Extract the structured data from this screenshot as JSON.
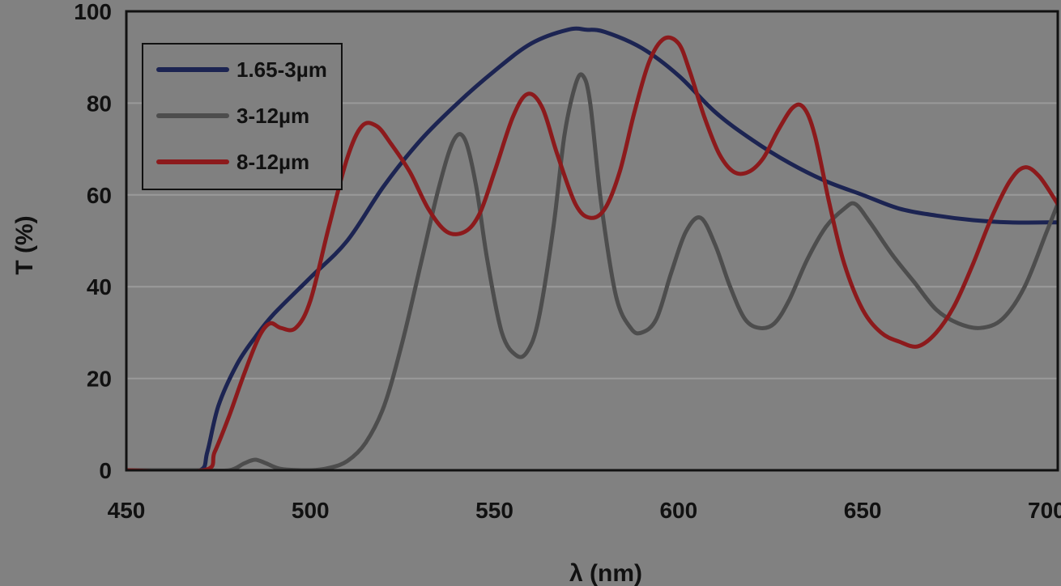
{
  "chart_data": {
    "type": "line",
    "title": "",
    "xlabel": "λ (nm)",
    "ylabel": "T (%)",
    "xlim": [
      450,
      703
    ],
    "ylim": [
      0,
      100
    ],
    "xticks": [
      450,
      500,
      550,
      600,
      650,
      700
    ],
    "yticks": [
      0,
      20,
      40,
      60,
      80,
      100
    ],
    "grid": "horizontal",
    "legend_position": "top-left",
    "colors": {
      "background": "#818181",
      "axes": "#111111",
      "grid": "#9a9a9a"
    },
    "series": [
      {
        "name": "1.65-3µm",
        "color": "#1c2452",
        "x": [
          450,
          460,
          470,
          472,
          475,
          480,
          485,
          490,
          500,
          510,
          520,
          530,
          540,
          550,
          560,
          570,
          575,
          580,
          590,
          600,
          610,
          620,
          630,
          640,
          650,
          660,
          670,
          680,
          690,
          700,
          703
        ],
        "y": [
          0,
          0,
          0,
          4,
          14,
          23,
          29,
          34,
          42,
          50,
          62,
          72,
          80,
          87,
          93,
          96,
          96,
          95.5,
          92,
          86,
          78,
          72,
          67,
          63,
          60,
          57,
          55.5,
          54.5,
          54,
          54,
          54
        ]
      },
      {
        "name": "3-12µm",
        "color": "#4d4d4d",
        "x": [
          450,
          470,
          478,
          482,
          485,
          488,
          492,
          500,
          505,
          510,
          515,
          520,
          525,
          530,
          535,
          539,
          542,
          545,
          548,
          552,
          556,
          559,
          562,
          566,
          569,
          572,
          574,
          576,
          579,
          583,
          587,
          590,
          594,
          598,
          602,
          606,
          610,
          614,
          618,
          622,
          626,
          630,
          635,
          640,
          645,
          648,
          652,
          658,
          664,
          670,
          676,
          682,
          688,
          694,
          700,
          703
        ],
        "y": [
          0,
          0,
          0,
          1.5,
          2.3,
          1.5,
          0.3,
          0,
          0.5,
          2,
          6,
          14,
          28,
          45,
          62,
          72,
          72,
          62,
          46,
          30,
          25,
          26,
          33,
          53,
          73,
          84,
          86,
          80,
          58,
          38,
          31,
          30,
          33,
          43,
          52,
          55,
          49,
          40,
          33,
          31,
          32,
          37,
          46,
          53,
          57,
          58,
          54,
          47,
          41,
          35,
          32,
          31,
          33,
          40,
          52,
          58
        ]
      },
      {
        "name": "8-12µm",
        "color": "#8c1a1c",
        "x": [
          450,
          471,
          474,
          478,
          482,
          486,
          489,
          492,
          496,
          500,
          505,
          510,
          514,
          518,
          522,
          527,
          532,
          537,
          542,
          546,
          550,
          555,
          559,
          563,
          567,
          572,
          576,
          580,
          584,
          588,
          592,
          596,
          600,
          603,
          607,
          611,
          615,
          619,
          623,
          627,
          631,
          634,
          637,
          641,
          645,
          650,
          655,
          660,
          665,
          670,
          675,
          680,
          685,
          690,
          694,
          698,
          703
        ],
        "y": [
          0,
          0,
          4,
          12,
          21,
          29,
          32,
          31,
          31,
          37,
          53,
          68,
          75,
          75,
          71,
          65,
          57,
          52,
          52,
          56,
          65,
          77,
          82,
          79,
          69,
          58,
          55,
          57,
          65,
          78,
          89,
          94,
          93,
          87,
          77,
          69,
          65,
          65,
          68,
          74,
          79,
          79,
          73,
          58,
          45,
          35,
          30,
          28,
          27,
          30,
          36,
          45,
          55,
          63,
          66,
          64,
          58
        ]
      }
    ]
  }
}
